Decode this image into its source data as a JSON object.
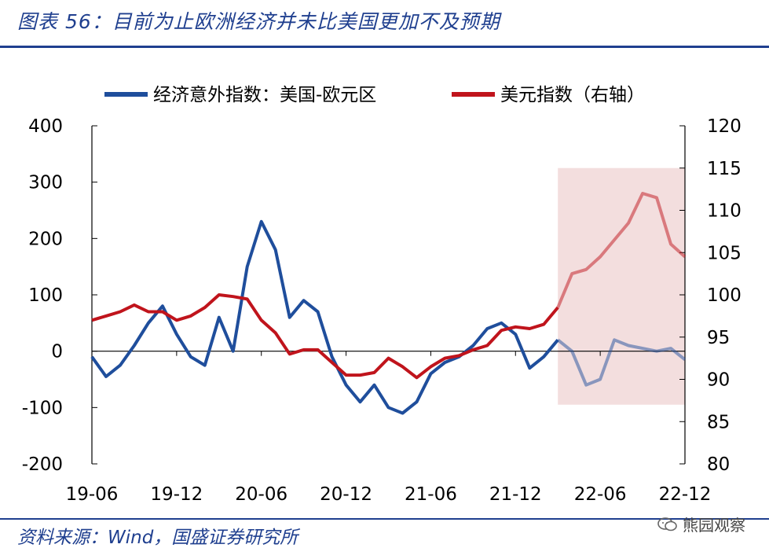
{
  "header": {
    "title": "图表 56：目前为止欧洲经济并未比美国更加不及预期"
  },
  "footer": {
    "source": "资料来源：Wind，国盛证券研究所",
    "watermark": "熊园观察"
  },
  "chart_data": {
    "type": "line",
    "title": "",
    "legend_placement": "top",
    "x_ticks": [
      "19-06",
      "19-12",
      "20-06",
      "20-12",
      "21-06",
      "21-12",
      "22-06",
      "22-12"
    ],
    "y_left": {
      "ticks": [
        400,
        300,
        200,
        100,
        0,
        -100,
        -200
      ],
      "range": [
        -200,
        400
      ]
    },
    "y_right": {
      "ticks": [
        120,
        115,
        110,
        105,
        100,
        95,
        90,
        85,
        80
      ],
      "range": [
        80,
        120
      ]
    },
    "highlight": {
      "from": "2022-03",
      "to": "2022-12",
      "color": "#f3dede"
    },
    "series": [
      {
        "name": "经济意外指数：美国-欧元区",
        "axis": "left",
        "color": "#1f4e9c",
        "points": [
          [
            "2019-06",
            -10
          ],
          [
            "2019-07",
            -45
          ],
          [
            "2019-08",
            -25
          ],
          [
            "2019-09",
            10
          ],
          [
            "2019-10",
            50
          ],
          [
            "2019-11",
            80
          ],
          [
            "2019-12",
            30
          ],
          [
            "2020-01",
            -10
          ],
          [
            "2020-02",
            -25
          ],
          [
            "2020-03",
            60
          ],
          [
            "2020-04",
            0
          ],
          [
            "2020-05",
            150
          ],
          [
            "2020-06",
            230
          ],
          [
            "2020-07",
            180
          ],
          [
            "2020-08",
            60
          ],
          [
            "2020-09",
            90
          ],
          [
            "2020-10",
            70
          ],
          [
            "2020-11",
            -10
          ],
          [
            "2020-12",
            -60
          ],
          [
            "2021-01",
            -90
          ],
          [
            "2021-02",
            -60
          ],
          [
            "2021-03",
            -100
          ],
          [
            "2021-04",
            -110
          ],
          [
            "2021-05",
            -90
          ],
          [
            "2021-06",
            -40
          ],
          [
            "2021-07",
            -20
          ],
          [
            "2021-08",
            -10
          ],
          [
            "2021-09",
            10
          ],
          [
            "2021-10",
            40
          ],
          [
            "2021-11",
            50
          ],
          [
            "2021-12",
            30
          ],
          [
            "2022-01",
            -30
          ],
          [
            "2022-02",
            -10
          ],
          [
            "2022-03",
            20
          ],
          [
            "2022-04",
            0
          ],
          [
            "2022-05",
            -60
          ],
          [
            "2022-06",
            -50
          ],
          [
            "2022-07",
            20
          ],
          [
            "2022-08",
            10
          ],
          [
            "2022-09",
            5
          ],
          [
            "2022-10",
            0
          ],
          [
            "2022-11",
            5
          ],
          [
            "2022-12",
            -15
          ]
        ]
      },
      {
        "name": "美元指数（右轴）",
        "axis": "right",
        "color": "#c0141c",
        "points": [
          [
            "2019-06",
            97
          ],
          [
            "2019-07",
            97.5
          ],
          [
            "2019-08",
            98
          ],
          [
            "2019-09",
            98.8
          ],
          [
            "2019-10",
            98
          ],
          [
            "2019-11",
            98
          ],
          [
            "2019-12",
            97
          ],
          [
            "2020-01",
            97.5
          ],
          [
            "2020-02",
            98.5
          ],
          [
            "2020-03",
            100
          ],
          [
            "2020-04",
            99.8
          ],
          [
            "2020-05",
            99.5
          ],
          [
            "2020-06",
            97
          ],
          [
            "2020-07",
            95.5
          ],
          [
            "2020-08",
            93
          ],
          [
            "2020-09",
            93.5
          ],
          [
            "2020-10",
            93.5
          ],
          [
            "2020-11",
            92
          ],
          [
            "2020-12",
            90.5
          ],
          [
            "2021-01",
            90.5
          ],
          [
            "2021-02",
            90.8
          ],
          [
            "2021-03",
            92.5
          ],
          [
            "2021-04",
            91.5
          ],
          [
            "2021-05",
            90.2
          ],
          [
            "2021-06",
            91.5
          ],
          [
            "2021-07",
            92.5
          ],
          [
            "2021-08",
            92.8
          ],
          [
            "2021-09",
            93.5
          ],
          [
            "2021-10",
            94
          ],
          [
            "2021-11",
            95.8
          ],
          [
            "2021-12",
            96.2
          ],
          [
            "2022-01",
            96
          ],
          [
            "2022-02",
            96.5
          ],
          [
            "2022-03",
            98.5
          ],
          [
            "2022-04",
            102.5
          ],
          [
            "2022-05",
            103
          ],
          [
            "2022-06",
            104.5
          ],
          [
            "2022-07",
            106.5
          ],
          [
            "2022-08",
            108.5
          ],
          [
            "2022-09",
            112
          ],
          [
            "2022-10",
            111.5
          ],
          [
            "2022-11",
            106
          ],
          [
            "2022-12",
            104.5
          ]
        ]
      }
    ]
  }
}
